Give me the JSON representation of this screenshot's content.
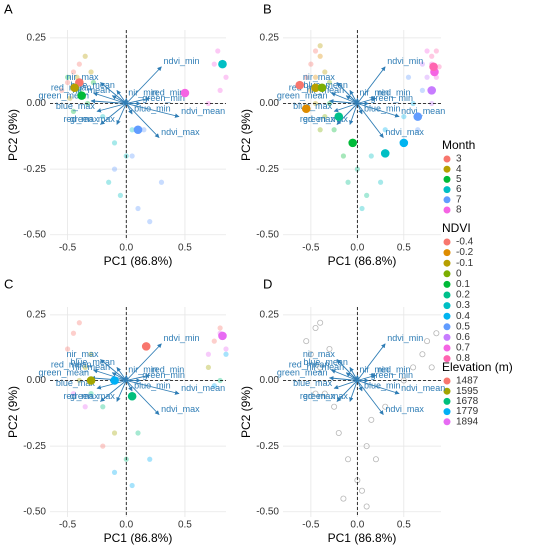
{
  "chart_data": [
    {
      "type": "scatter",
      "label": "A",
      "xlabel": "PC1 (86.8%)",
      "ylabel": "PC2 (9%)",
      "legend_title": "Month",
      "xlim": [
        -0.65,
        0.85
      ],
      "ylim": [
        -0.52,
        0.28
      ],
      "xticks": [
        -0.5,
        {
          "value": 0,
          "label": "0.0"
        },
        0.5
      ],
      "yticks": [
        0.25,
        {
          "value": 0,
          "label": "0.00"
        },
        -0.25,
        {
          "value": -0.5,
          "label": "-0.50"
        }
      ],
      "grid": true,
      "zero_lines": true,
      "series": [
        {
          "name": "3",
          "color": "#F8766D",
          "x": [
            -0.45,
            -0.5,
            -0.4,
            -0.55
          ],
          "y": [
            0.12,
            0.08,
            0.15,
            0.05
          ],
          "centroid": {
            "x": -0.4,
            "y": 0.08
          }
        },
        {
          "name": "4",
          "color": "#B79F00",
          "x": [
            -0.42,
            -0.35,
            -0.48,
            -0.3
          ],
          "y": [
            0.1,
            0.18,
            0.02,
            0.12
          ],
          "centroid": {
            "x": -0.44,
            "y": 0.06
          }
        },
        {
          "name": "5",
          "color": "#00BA38",
          "x": [
            -0.4,
            -0.33,
            -0.45,
            -0.28,
            -0.5
          ],
          "y": [
            0.05,
            0,
            -0.03,
            0.08,
            0.1
          ],
          "centroid": {
            "x": -0.38,
            "y": 0.03
          }
        },
        {
          "name": "6",
          "color": "#00BFC4",
          "x": [
            -0.2,
            -0.1,
            0,
            -0.15,
            0.05,
            -0.05
          ],
          "y": [
            -0.05,
            -0.15,
            -0.2,
            -0.3,
            -0.1,
            -0.35
          ],
          "centroid": {
            "x": 0.82,
            "y": 0.15
          }
        },
        {
          "name": "7",
          "color": "#619CFF",
          "x": [
            -0.1,
            0.1,
            0.2,
            0.15,
            0.3,
            0.05
          ],
          "y": [
            -0.25,
            -0.4,
            -0.45,
            -0.1,
            -0.3,
            -0.2
          ],
          "centroid": {
            "x": 0.1,
            "y": -0.1
          }
        },
        {
          "name": "8",
          "color": "#F564E3",
          "x": [
            0.75,
            0.8,
            0.85,
            0.7,
            0.78
          ],
          "y": [
            0.15,
            0.05,
            0.1,
            0,
            0.2
          ],
          "centroid": {
            "x": 0.5,
            "y": 0.04
          }
        }
      ]
    },
    {
      "type": "scatter",
      "label": "B",
      "xlabel": "PC1 (86.8%)",
      "ylabel": "PC2 (9%)",
      "legend_title": "NDVI",
      "xlim": [
        -0.8,
        0.9
      ],
      "ylim": [
        -0.52,
        0.28
      ],
      "xticks": [
        -0.5,
        {
          "value": 0,
          "label": "0.0"
        },
        0.5
      ],
      "yticks": [
        0.25,
        {
          "value": 0,
          "label": "0.00"
        },
        -0.25,
        {
          "value": -0.5,
          "label": "-0.50"
        }
      ],
      "grid": true,
      "zero_lines": true,
      "series": [
        {
          "name": "-0.4",
          "color": "#F8766D",
          "x": [
            -0.55,
            -0.5,
            -0.45
          ],
          "y": [
            0.1,
            0.15,
            0.2
          ],
          "centroid": {
            "x": -0.62,
            "y": 0.07
          }
        },
        {
          "name": "-0.2",
          "color": "#DE8C00",
          "x": [
            -0.5,
            -0.45,
            -0.4
          ],
          "y": [
            0.05,
            0.1,
            0.18
          ],
          "centroid": {
            "x": -0.55,
            "y": -0.02
          }
        },
        {
          "name": "-0.1",
          "color": "#B79F00",
          "x": [
            -0.45,
            -0.35,
            -0.4
          ],
          "y": [
            0,
            0.12,
            0.22
          ],
          "centroid": {
            "x": -0.45,
            "y": 0.06
          }
        },
        {
          "name": "0",
          "color": "#7CAE00",
          "x": [
            -0.35,
            -0.3,
            -0.4
          ],
          "y": [
            -0.05,
            0.08,
            -0.1
          ],
          "centroid": {
            "x": -0.38,
            "y": 0.06
          }
        },
        {
          "name": "0.1",
          "color": "#00BA38",
          "x": [
            -0.25,
            -0.15,
            -0.3
          ],
          "y": [
            -0.1,
            -0.2,
            0
          ],
          "centroid": {
            "x": -0.05,
            "y": -0.15
          }
        },
        {
          "name": "0.2",
          "color": "#00C08B",
          "x": [
            -0.1,
            0,
            0.1
          ],
          "y": [
            -0.3,
            -0.25,
            -0.35
          ],
          "centroid": {
            "x": -0.2,
            "y": -0.05
          }
        },
        {
          "name": "0.3",
          "color": "#00BFC4",
          "x": [
            0.05,
            0.15,
            0.25
          ],
          "y": [
            -0.4,
            -0.2,
            -0.3
          ],
          "centroid": {
            "x": 0.3,
            "y": -0.19
          }
        },
        {
          "name": "0.4",
          "color": "#00B4F0",
          "x": [
            0.3,
            0.5,
            0.6
          ],
          "y": [
            -0.1,
            -0.05,
            0
          ],
          "centroid": {
            "x": 0.5,
            "y": -0.15
          }
        },
        {
          "name": "0.5",
          "color": "#619CFF",
          "x": [
            0.7,
            0.65,
            0.55
          ],
          "y": [
            0.05,
            -0.1,
            0.1
          ],
          "centroid": {
            "x": 0.65,
            "y": -0.05
          }
        },
        {
          "name": "0.6",
          "color": "#C77CFF",
          "x": [
            0.75,
            0.8,
            0.7
          ],
          "y": [
            0.1,
            0,
            0.15
          ],
          "centroid": {
            "x": 0.8,
            "y": 0.05
          }
        },
        {
          "name": "0.7",
          "color": "#F564E3",
          "x": [
            0.8,
            0.85,
            0.75
          ],
          "y": [
            0.15,
            0.1,
            0.2
          ],
          "centroid": {
            "x": 0.83,
            "y": 0.12
          }
        },
        {
          "name": "0.8",
          "color": "#FF64B0",
          "x": [
            0.85,
            0.8,
            0.88
          ],
          "y": [
            0.2,
            0.18,
            0.14
          ],
          "centroid": {
            "x": 0.82,
            "y": 0.14
          }
        }
      ]
    },
    {
      "type": "scatter",
      "label": "C",
      "xlabel": "PC1 (86.8%)",
      "ylabel": "PC2 (9%)",
      "legend_title": "Elevation (m)",
      "xlim": [
        -0.65,
        0.85
      ],
      "ylim": [
        -0.52,
        0.28
      ],
      "xticks": [
        -0.5,
        {
          "value": 0,
          "label": "0.0"
        },
        0.5
      ],
      "yticks": [
        0.25,
        {
          "value": 0,
          "label": "0.00"
        },
        -0.25,
        {
          "value": -0.5,
          "label": "-0.50"
        }
      ],
      "grid": true,
      "zero_lines": true,
      "series": [
        {
          "name": "1487",
          "color": "#F8766D",
          "x": [
            -0.45,
            -0.4,
            -0.5,
            0.8,
            0.75,
            -0.2
          ],
          "y": [
            0.18,
            0.22,
            0.12,
            0.2,
            0.15,
            -0.25
          ],
          "centroid": {
            "x": 0.17,
            "y": 0.13
          }
        },
        {
          "name": "1595",
          "color": "#A3A500",
          "x": [
            -0.35,
            -0.3,
            -0.4,
            0.7,
            -0.1
          ],
          "y": [
            0.05,
            0.1,
            0,
            0.05,
            -0.2
          ],
          "centroid": {
            "x": -0.3,
            "y": 0
          }
        },
        {
          "name": "1678",
          "color": "#00BF7D",
          "x": [
            -0.3,
            0,
            0.1,
            0.8,
            -0.2
          ],
          "y": [
            -0.05,
            -0.3,
            -0.2,
            0,
            -0.1
          ],
          "centroid": {
            "x": 0.05,
            "y": -0.06
          }
        },
        {
          "name": "1779",
          "color": "#00B0F6",
          "x": [
            -0.1,
            0.05,
            0.2,
            0.75,
            0.85
          ],
          "y": [
            -0.35,
            -0.4,
            -0.3,
            -0.02,
            0.1
          ],
          "centroid": {
            "x": -0.1,
            "y": 0
          }
        },
        {
          "name": "1894",
          "color": "#E76BF3",
          "x": [
            0.8,
            0.85,
            -0.45,
            -0.35,
            0.7
          ],
          "y": [
            0.18,
            0.12,
            -0.05,
            -0.1,
            0.1
          ],
          "centroid": {
            "x": 0.82,
            "y": 0.17
          }
        }
      ]
    },
    {
      "type": "scatter",
      "label": "D",
      "xlabel": "PC1 (86.8%)",
      "ylabel": "PC2 (9%)",
      "xlim": [
        -0.8,
        0.9
      ],
      "ylim": [
        -0.52,
        0.28
      ],
      "xticks": [
        -0.5,
        {
          "value": 0,
          "label": "0.0"
        },
        0.5
      ],
      "yticks": [
        0.25,
        {
          "value": 0,
          "label": "0.00"
        },
        -0.25,
        {
          "value": -0.5,
          "label": "-0.50"
        }
      ],
      "grid": true,
      "zero_lines": true,
      "hollow": true,
      "series": [
        {
          "color": "#999999",
          "x": [
            -0.55,
            -0.5,
            -0.45,
            -0.4,
            -0.35,
            -0.3,
            -0.25,
            -0.2,
            -0.1,
            0,
            0.05,
            0.1,
            0.15,
            0.2,
            0.3,
            0.5,
            0.6,
            0.7,
            0.75,
            0.8,
            0.85,
            -0.45,
            -0.4,
            -0.15,
            0.1
          ],
          "y": [
            0.15,
            0.1,
            0.2,
            0.05,
            -0.05,
            0.12,
            -0.1,
            -0.2,
            -0.3,
            -0.38,
            -0.42,
            -0.25,
            -0.15,
            -0.3,
            -0.1,
            0,
            0.05,
            0.1,
            0.15,
            0.05,
            0.18,
            -0.05,
            0.22,
            -0.45,
            -0.48
          ]
        }
      ]
    }
  ],
  "loadings": {
    "color": "#2f7db5",
    "names": [
      "ndvi_min",
      "nir_max",
      "blue_mean",
      "nir_mean",
      "red_mean",
      "nir_min",
      "red_min",
      "green_mean",
      "green_min",
      "ndvi_mean",
      "blue_max",
      "blue_min",
      "red_max",
      "green_max",
      "ndvi_max"
    ],
    "x": [
      0.3,
      -0.22,
      -0.08,
      -0.12,
      -0.28,
      0,
      0.2,
      -0.3,
      0.12,
      0.45,
      -0.25,
      0.05,
      -0.22,
      -0.08,
      0.28
    ],
    "y": [
      0.14,
      0.08,
      0.05,
      0.03,
      0.04,
      0.02,
      0.02,
      0.01,
      0,
      -0.05,
      -0.03,
      -0.04,
      -0.08,
      -0.08,
      -0.13
    ]
  }
}
